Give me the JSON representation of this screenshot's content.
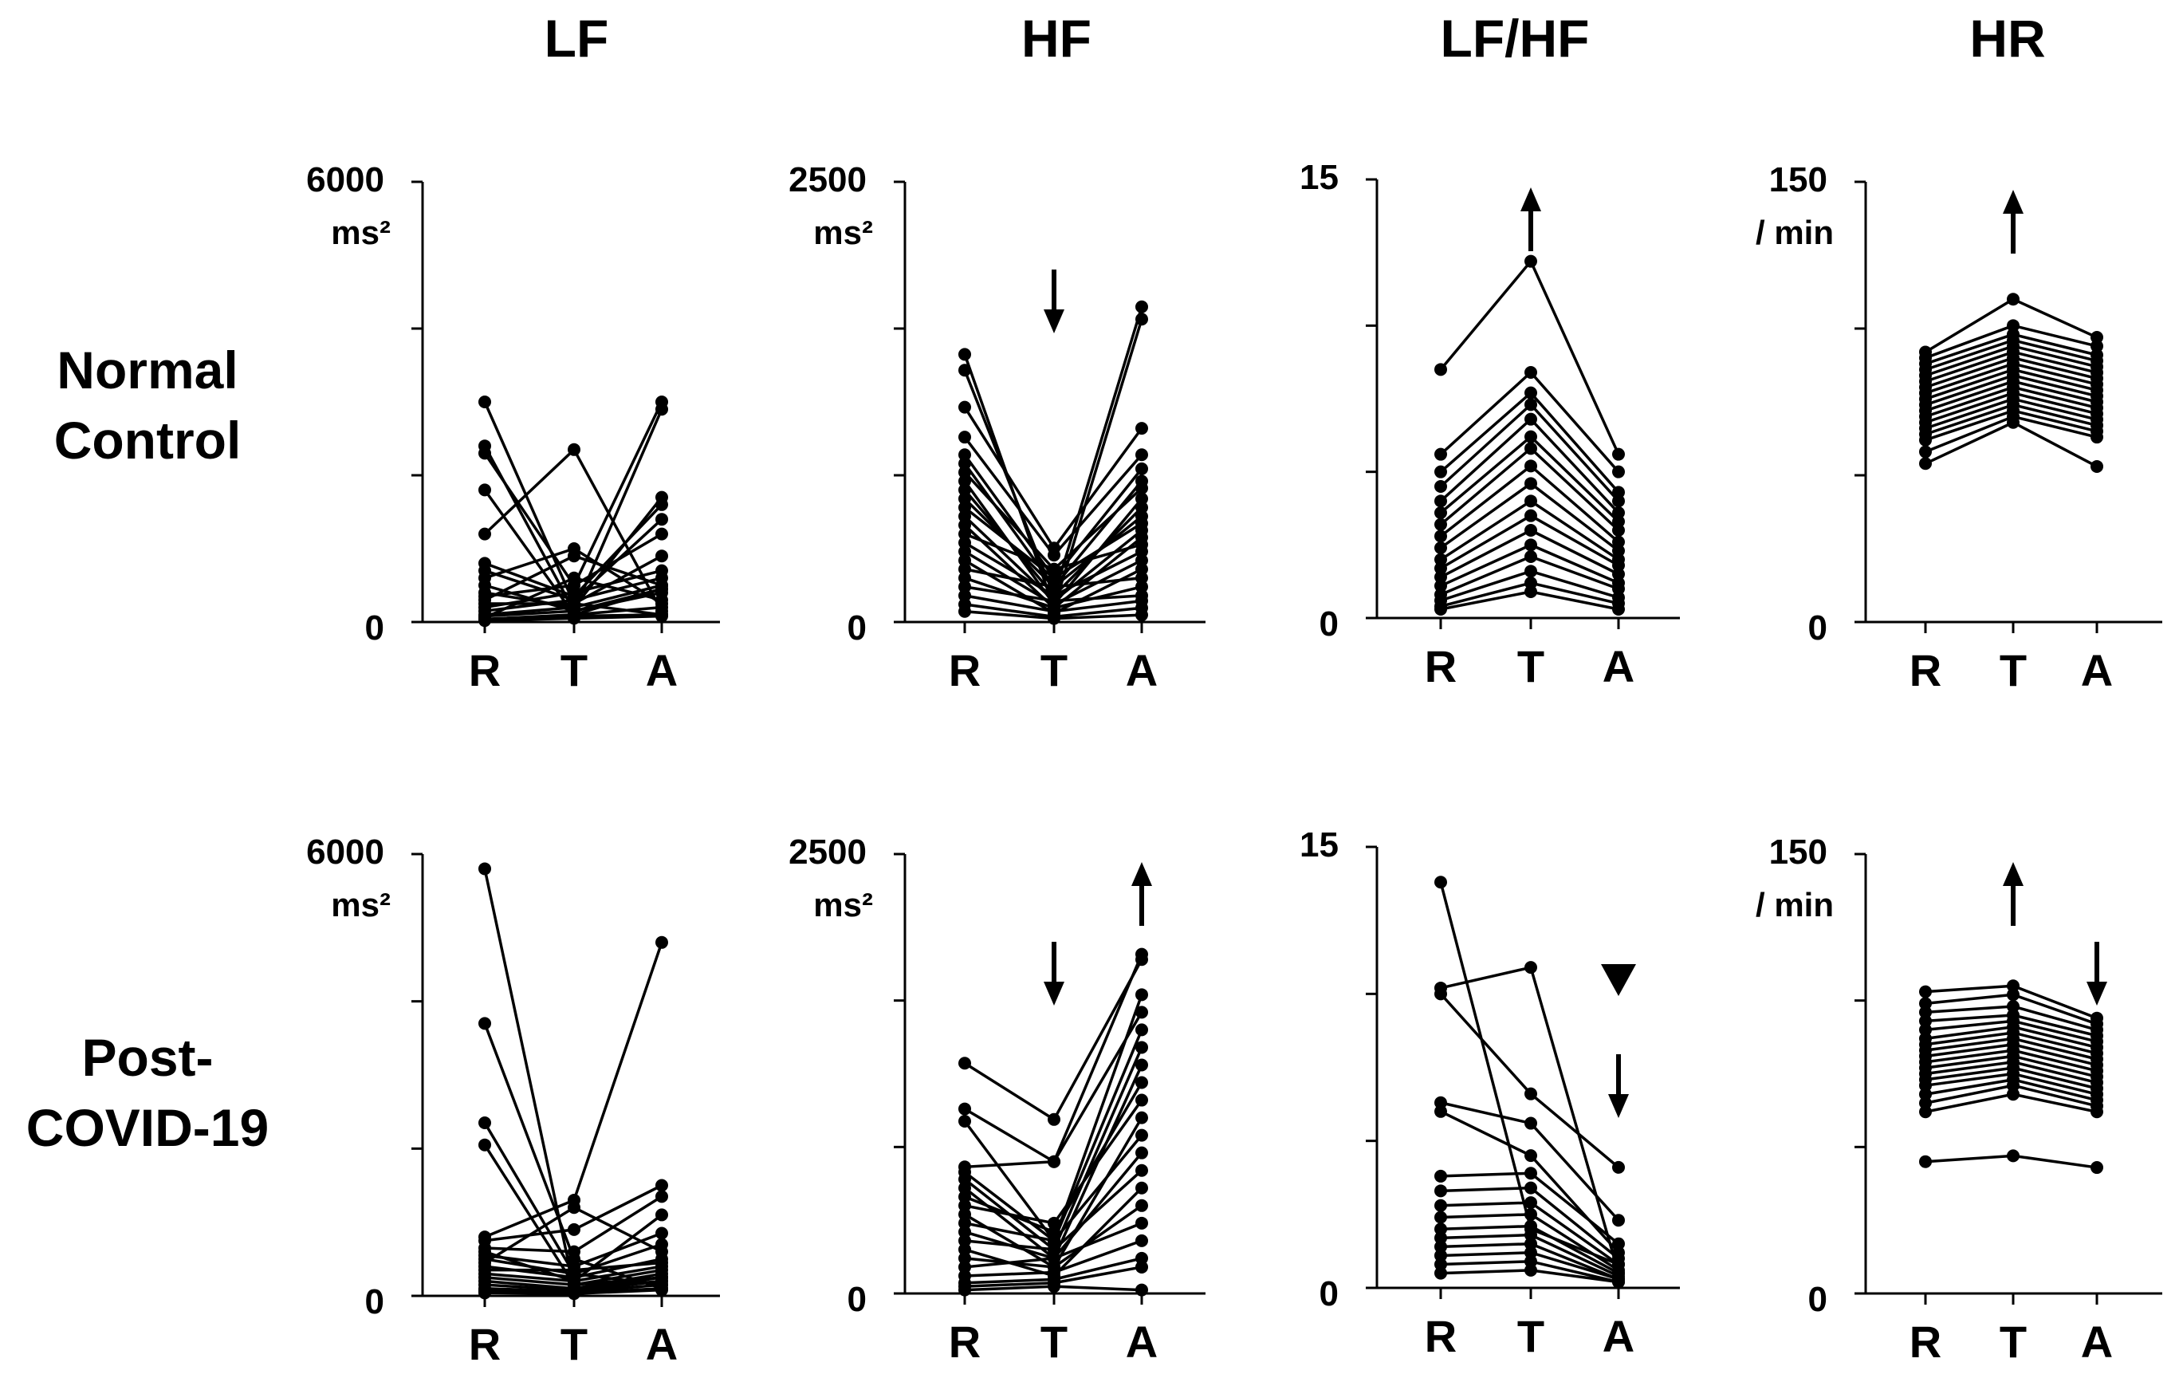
{
  "column_titles": [
    "LF",
    "HF",
    "LF/HF",
    "HR"
  ],
  "row_labels": [
    {
      "line1": "Normal",
      "line2": "Control"
    },
    {
      "line1": "Post-",
      "line2": "COVID-19"
    }
  ],
  "chart_data": [
    {
      "type": "line",
      "group": "Normal Control",
      "title": "LF",
      "categories": [
        "R",
        "T",
        "A"
      ],
      "ylim": [
        0,
        6000
      ],
      "yticks": [
        {
          "value": 0,
          "label": "0"
        },
        {
          "value": 6000,
          "label": "6000"
        }
      ],
      "unit": "ms²",
      "annotations": [],
      "series": [
        [
          3000,
          250,
          100
        ],
        [
          2400,
          150,
          450
        ],
        [
          2300,
          500,
          3000
        ],
        [
          1800,
          100,
          450
        ],
        [
          1200,
          2350,
          150
        ],
        [
          800,
          350,
          1600
        ],
        [
          700,
          300,
          1400
        ],
        [
          600,
          1000,
          250
        ],
        [
          500,
          150,
          2900
        ],
        [
          400,
          200,
          1700
        ],
        [
          350,
          500,
          1200
        ],
        [
          300,
          900,
          500
        ],
        [
          250,
          250,
          900
        ],
        [
          200,
          400,
          700
        ],
        [
          150,
          300,
          600
        ],
        [
          100,
          200,
          500
        ],
        [
          80,
          150,
          400
        ],
        [
          60,
          600,
          300
        ],
        [
          40,
          100,
          200
        ],
        [
          30,
          80,
          100
        ],
        [
          20,
          50,
          80
        ]
      ]
    },
    {
      "type": "line",
      "group": "Normal Control",
      "title": "HF",
      "categories": [
        "R",
        "T",
        "A"
      ],
      "ylim": [
        0,
        2500
      ],
      "yticks": [
        {
          "value": 0,
          "label": "0"
        },
        {
          "value": 2500,
          "label": "2500"
        }
      ],
      "unit": "ms²",
      "annotations": [
        {
          "category": "T",
          "symbol": "down-arrow"
        }
      ],
      "series": [
        [
          1520,
          80,
          1720
        ],
        [
          1430,
          150,
          1790
        ],
        [
          1220,
          420,
          1100
        ],
        [
          1050,
          380,
          950
        ],
        [
          950,
          250,
          870
        ],
        [
          900,
          200,
          800
        ],
        [
          850,
          300,
          760
        ],
        [
          800,
          100,
          700
        ],
        [
          750,
          150,
          650
        ],
        [
          700,
          200,
          600
        ],
        [
          650,
          250,
          560
        ],
        [
          600,
          120,
          520
        ],
        [
          550,
          80,
          480
        ],
        [
          500,
          300,
          440
        ],
        [
          450,
          150,
          400
        ],
        [
          400,
          100,
          350
        ],
        [
          350,
          50,
          300
        ],
        [
          300,
          200,
          250
        ],
        [
          250,
          80,
          200
        ],
        [
          200,
          120,
          150
        ],
        [
          150,
          60,
          120
        ],
        [
          100,
          30,
          80
        ],
        [
          60,
          20,
          40
        ]
      ]
    },
    {
      "type": "line",
      "group": "Normal Control",
      "title": "LF/HF",
      "categories": [
        "R",
        "T",
        "A"
      ],
      "ylim": [
        0,
        15
      ],
      "yticks": [
        {
          "value": 0,
          "label": "0"
        },
        {
          "value": 15,
          "label": "15"
        }
      ],
      "unit": "",
      "annotations": [
        {
          "category": "T",
          "symbol": "up-arrow"
        }
      ],
      "series": [
        [
          8.5,
          12.2,
          5.6
        ],
        [
          5.6,
          8.4,
          5.0
        ],
        [
          5.0,
          7.7,
          4.3
        ],
        [
          4.5,
          7.3,
          4.0
        ],
        [
          4.0,
          6.8,
          3.6
        ],
        [
          3.6,
          6.2,
          3.3
        ],
        [
          3.2,
          5.8,
          3.0
        ],
        [
          2.8,
          5.2,
          2.6
        ],
        [
          2.4,
          4.6,
          2.3
        ],
        [
          2.0,
          4.0,
          2.0
        ],
        [
          1.7,
          3.5,
          1.8
        ],
        [
          1.4,
          3.0,
          1.5
        ],
        [
          1.1,
          2.5,
          1.2
        ],
        [
          0.8,
          2.1,
          1.0
        ],
        [
          0.6,
          1.6,
          0.7
        ],
        [
          0.4,
          1.2,
          0.5
        ],
        [
          0.3,
          0.9,
          0.3
        ]
      ]
    },
    {
      "type": "line",
      "group": "Normal Control",
      "title": "HR",
      "categories": [
        "R",
        "T",
        "A"
      ],
      "ylim": [
        0,
        150
      ],
      "yticks": [
        {
          "value": 0,
          "label": "0"
        },
        {
          "value": 150,
          "label": "150"
        }
      ],
      "unit": "/ min",
      "annotations": [
        {
          "category": "T",
          "symbol": "up-arrow"
        }
      ],
      "series": [
        [
          92,
          110,
          97
        ],
        [
          90,
          101,
          94
        ],
        [
          88,
          98,
          91
        ],
        [
          86,
          96,
          89
        ],
        [
          84,
          94,
          87
        ],
        [
          82,
          92,
          85
        ],
        [
          80,
          90,
          83
        ],
        [
          78,
          88,
          81
        ],
        [
          76,
          86,
          79
        ],
        [
          74,
          84,
          77
        ],
        [
          72,
          82,
          75
        ],
        [
          70,
          80,
          73
        ],
        [
          68,
          78,
          71
        ],
        [
          66,
          76,
          69
        ],
        [
          64,
          74,
          67
        ],
        [
          62,
          72,
          65
        ],
        [
          58,
          70,
          63
        ],
        [
          54,
          68,
          53
        ]
      ]
    },
    {
      "type": "line",
      "group": "Post-COVID-19",
      "title": "LF",
      "categories": [
        "R",
        "T",
        "A"
      ],
      "ylim": [
        0,
        6000
      ],
      "yticks": [
        {
          "value": 0,
          "label": "0"
        },
        {
          "value": 6000,
          "label": "6000"
        }
      ],
      "unit": "ms²",
      "annotations": [],
      "series": [
        [
          5800,
          100,
          200
        ],
        [
          3700,
          500,
          100
        ],
        [
          2350,
          300,
          150
        ],
        [
          2050,
          150,
          250
        ],
        [
          800,
          1300,
          4800
        ],
        [
          750,
          900,
          1500
        ],
        [
          650,
          600,
          1350
        ],
        [
          600,
          200,
          1100
        ],
        [
          550,
          400,
          850
        ],
        [
          500,
          300,
          700
        ],
        [
          450,
          1200,
          600
        ],
        [
          400,
          250,
          500
        ],
        [
          350,
          350,
          450
        ],
        [
          300,
          200,
          400
        ],
        [
          250,
          150,
          350
        ],
        [
          200,
          100,
          300
        ],
        [
          150,
          80,
          250
        ],
        [
          100,
          60,
          200
        ],
        [
          80,
          50,
          150
        ],
        [
          60,
          40,
          100
        ],
        [
          40,
          30,
          80
        ]
      ]
    },
    {
      "type": "line",
      "group": "Post-COVID-19",
      "title": "HF",
      "categories": [
        "R",
        "T",
        "A"
      ],
      "ylim": [
        0,
        2500
      ],
      "yticks": [
        {
          "value": 0,
          "label": "0"
        },
        {
          "value": 2500,
          "label": "2500"
        }
      ],
      "unit": "ms²",
      "annotations": [
        {
          "category": "T",
          "symbol": "down-arrow"
        },
        {
          "category": "A",
          "symbol": "up-arrow"
        }
      ],
      "series": [
        [
          1310,
          990,
          1900
        ],
        [
          1050,
          750,
          1930
        ],
        [
          980,
          300,
          1700
        ],
        [
          720,
          750,
          1600
        ],
        [
          690,
          300,
          1500
        ],
        [
          650,
          250,
          1400
        ],
        [
          600,
          200,
          1300
        ],
        [
          550,
          350,
          1200
        ],
        [
          500,
          400,
          1100
        ],
        [
          450,
          150,
          1000
        ],
        [
          400,
          300,
          900
        ],
        [
          350,
          200,
          800
        ],
        [
          300,
          250,
          700
        ],
        [
          250,
          100,
          600
        ],
        [
          200,
          150,
          500
        ],
        [
          150,
          200,
          400
        ],
        [
          100,
          120,
          300
        ],
        [
          60,
          80,
          200
        ],
        [
          40,
          60,
          150
        ],
        [
          20,
          40,
          20
        ]
      ]
    },
    {
      "type": "line",
      "group": "Post-COVID-19",
      "title": "LF/HF",
      "categories": [
        "R",
        "T",
        "A"
      ],
      "ylim": [
        0,
        15
      ],
      "yticks": [
        {
          "value": 0,
          "label": "0"
        },
        {
          "value": 15,
          "label": "15"
        }
      ],
      "unit": "",
      "annotations": [
        {
          "category": "A",
          "symbol": "filled-triangle-down"
        },
        {
          "category": "A",
          "symbol": "down-arrow"
        }
      ],
      "series": [
        [
          13.8,
          2.0,
          0.8
        ],
        [
          10.2,
          10.9,
          0.5
        ],
        [
          10.0,
          6.6,
          4.1
        ],
        [
          6.3,
          5.6,
          2.3
        ],
        [
          6.0,
          4.5,
          1.2
        ],
        [
          3.8,
          3.9,
          1.5
        ],
        [
          3.3,
          3.4,
          1.0
        ],
        [
          2.8,
          2.9,
          0.8
        ],
        [
          2.4,
          2.5,
          0.6
        ],
        [
          2.0,
          2.1,
          0.5
        ],
        [
          1.7,
          1.8,
          0.4
        ],
        [
          1.4,
          1.5,
          0.3
        ],
        [
          1.1,
          1.2,
          0.3
        ],
        [
          0.8,
          0.9,
          0.2
        ],
        [
          0.5,
          0.6,
          0.2
        ]
      ]
    },
    {
      "type": "line",
      "group": "Post-COVID-19",
      "title": "HR",
      "categories": [
        "R",
        "T",
        "A"
      ],
      "ylim": [
        0,
        150
      ],
      "yticks": [
        {
          "value": 0,
          "label": "0"
        },
        {
          "value": 150,
          "label": "150"
        }
      ],
      "unit": "/ min",
      "annotations": [
        {
          "category": "T",
          "symbol": "up-arrow"
        },
        {
          "category": "A",
          "symbol": "down-arrow"
        }
      ],
      "series": [
        [
          103,
          105,
          94
        ],
        [
          99,
          102,
          92
        ],
        [
          96,
          98,
          90
        ],
        [
          93,
          95,
          88
        ],
        [
          90,
          93,
          86
        ],
        [
          87,
          91,
          84
        ],
        [
          85,
          89,
          82
        ],
        [
          83,
          87,
          80
        ],
        [
          81,
          85,
          78
        ],
        [
          79,
          83,
          76
        ],
        [
          77,
          81,
          74
        ],
        [
          75,
          79,
          72
        ],
        [
          73,
          77,
          70
        ],
        [
          71,
          75,
          68
        ],
        [
          68,
          73,
          66
        ],
        [
          65,
          71,
          64
        ],
        [
          62,
          68,
          62
        ],
        [
          45,
          47,
          43
        ]
      ]
    }
  ]
}
